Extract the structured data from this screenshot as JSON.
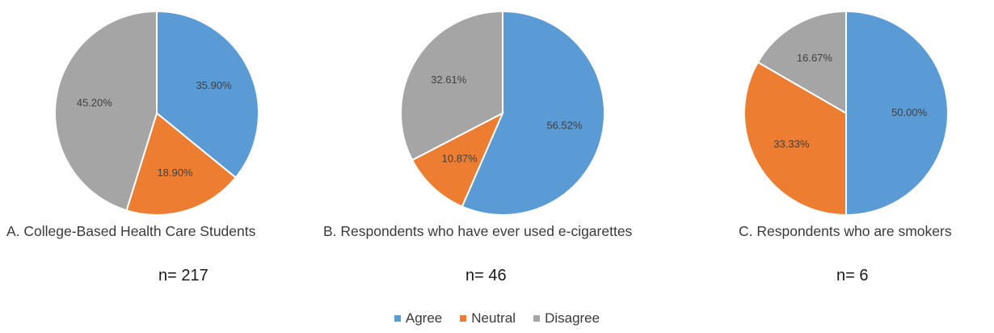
{
  "colors": {
    "Agree": "#5b9bd5",
    "Neutral": "#ed7d31",
    "Disagree": "#a5a5a5"
  },
  "chart_data": [
    {
      "type": "pie",
      "title": "A. College-Based Health Care Students",
      "n_label": "n= 217",
      "labels": [
        "Agree",
        "Neutral",
        "Disagree"
      ],
      "values": [
        35.9,
        18.9,
        45.2
      ],
      "value_labels": [
        "35.90%",
        "18.90%",
        "45.20%"
      ]
    },
    {
      "type": "pie",
      "title": "B. Respondents who have ever used e-cigarettes",
      "n_label": "n= 46",
      "labels": [
        "Agree",
        "Neutral",
        "Disagree"
      ],
      "values": [
        56.52,
        10.87,
        32.61
      ],
      "value_labels": [
        "56.52%",
        "10.87%",
        "32.61%"
      ]
    },
    {
      "type": "pie",
      "title": "C. Respondents who are smokers",
      "n_label": "n= 6",
      "labels": [
        "Agree",
        "Neutral",
        "Disagree"
      ],
      "values": [
        50.0,
        33.33,
        16.67
      ],
      "value_labels": [
        "50.00%",
        "33.33%",
        "16.67%"
      ]
    }
  ],
  "legend": [
    {
      "label": "Agree",
      "color": "#5b9bd5"
    },
    {
      "label": "Neutral",
      "color": "#ed7d31"
    },
    {
      "label": "Disagree",
      "color": "#a5a5a5"
    }
  ]
}
